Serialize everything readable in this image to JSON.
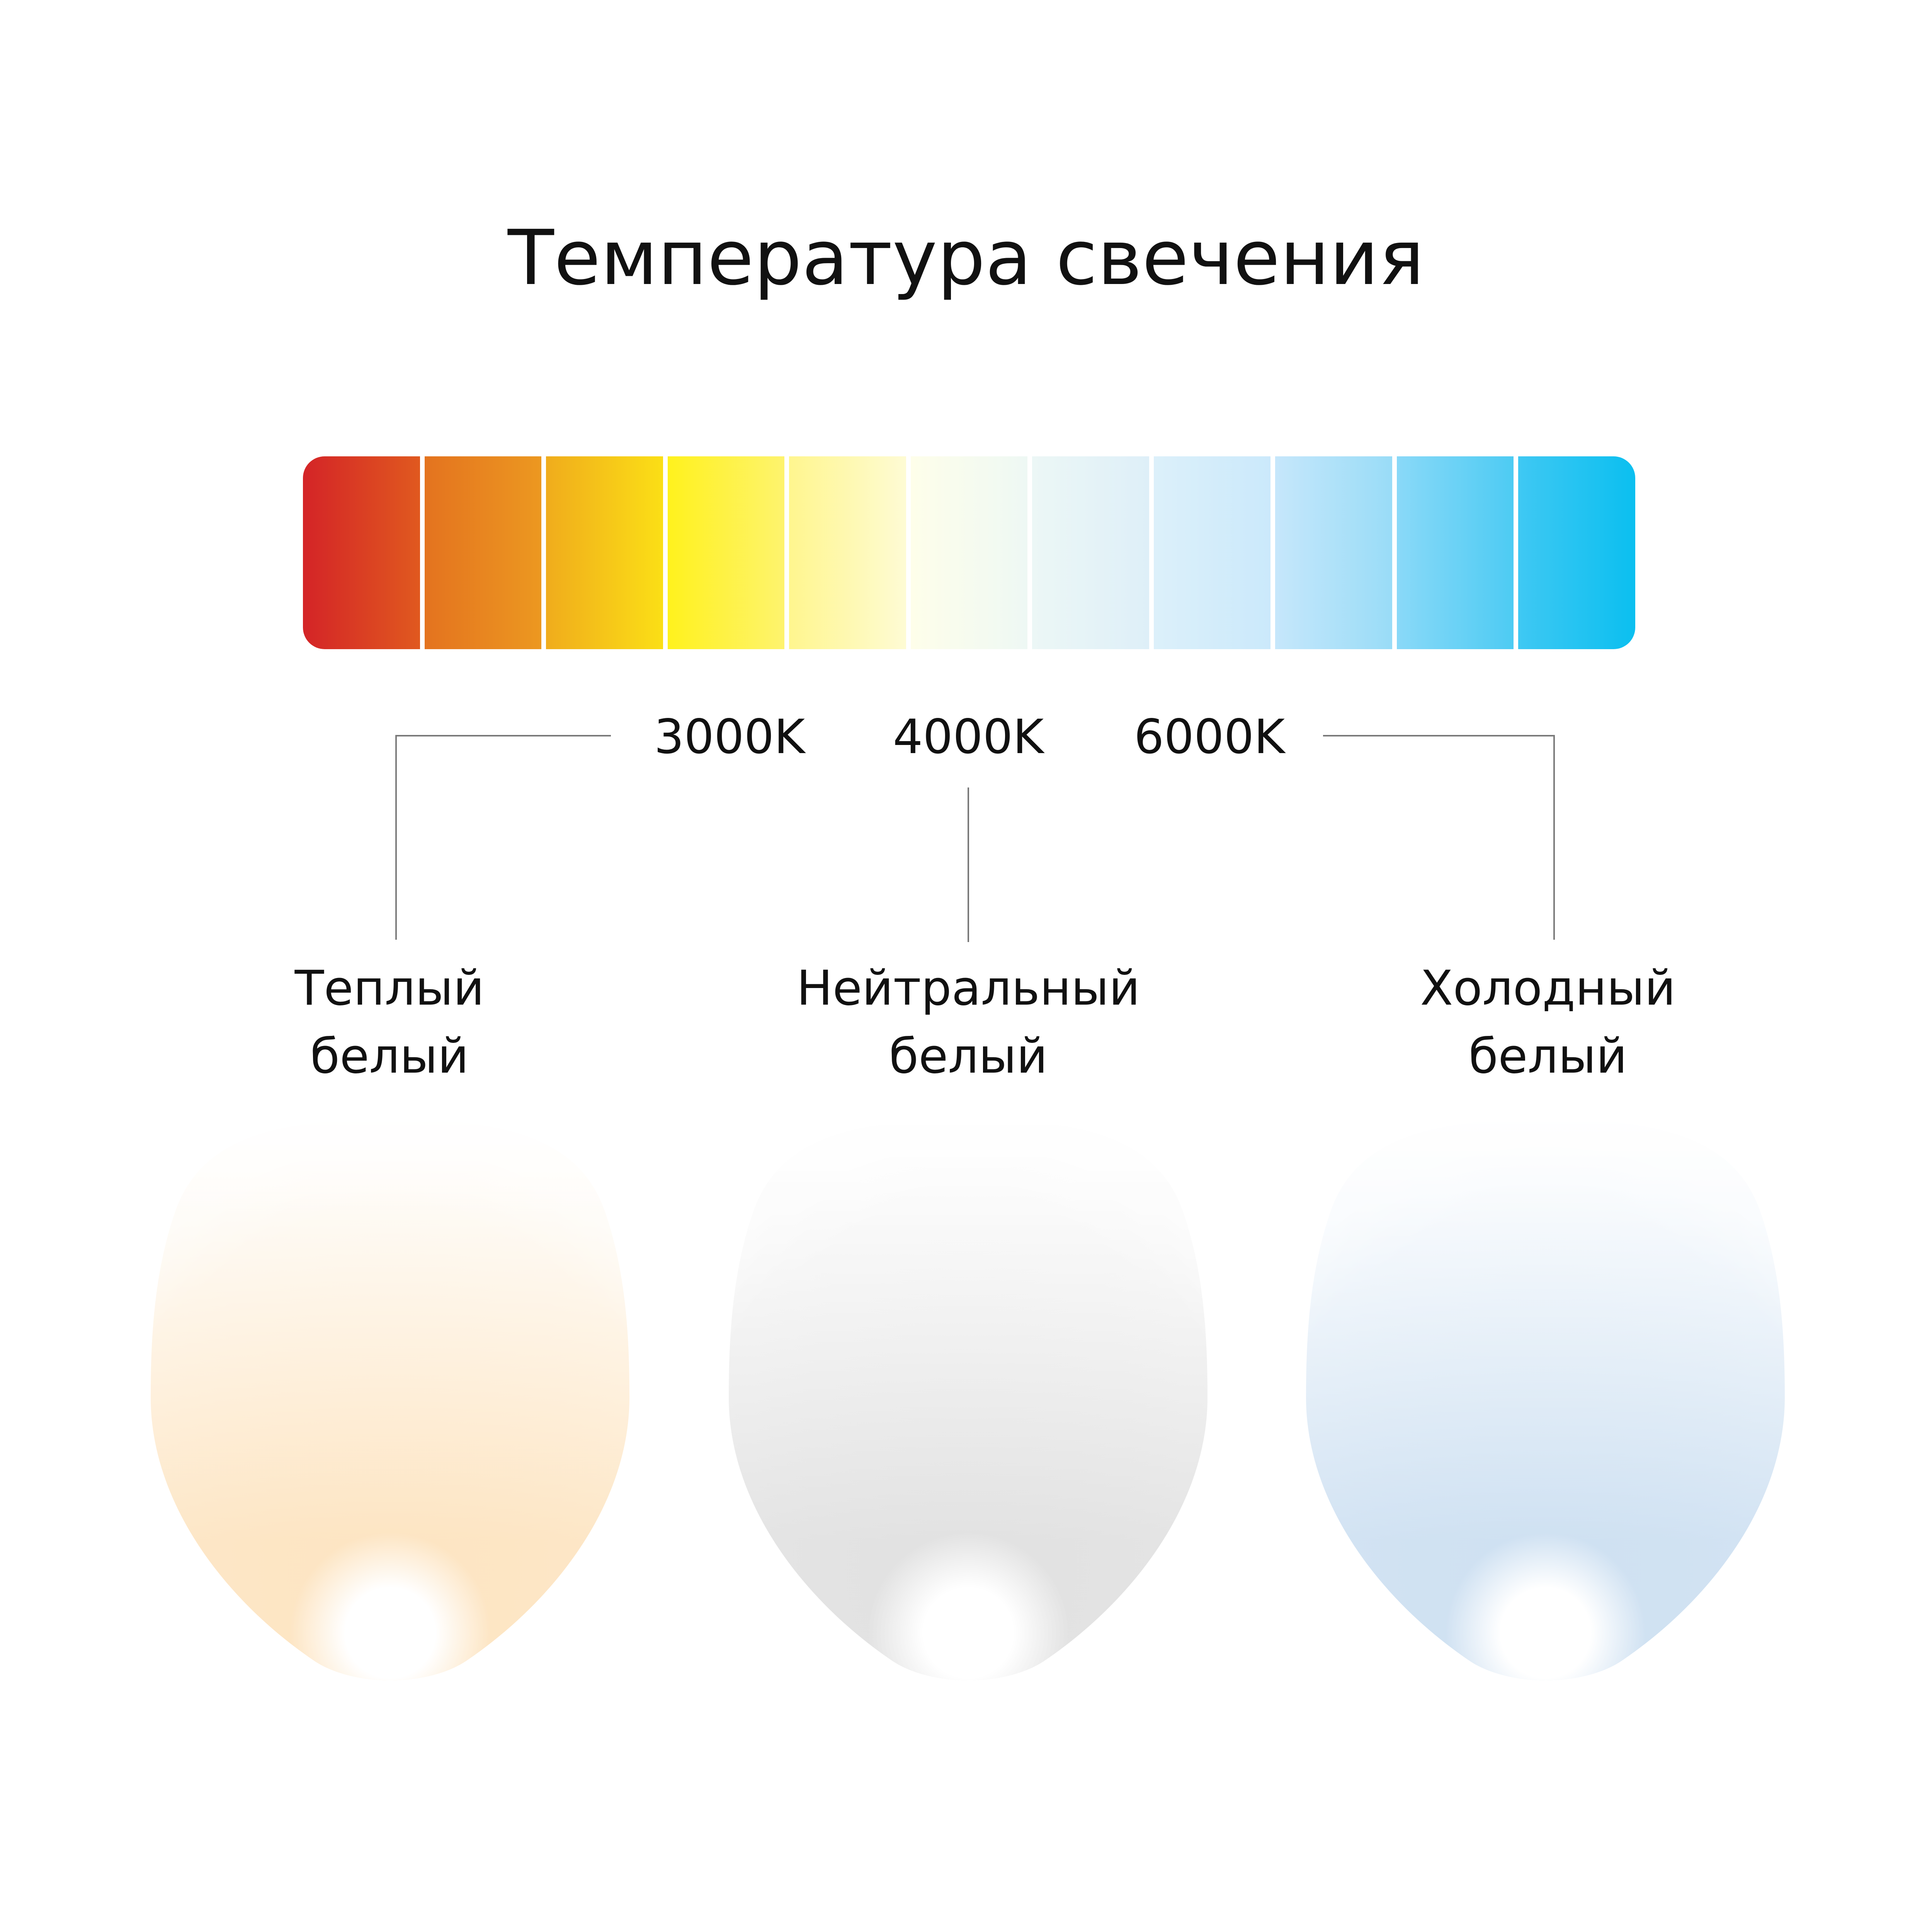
{
  "title": "Температура свечения",
  "scale": {
    "segment_colors": [
      [
        "#d42427",
        "#e0591f"
      ],
      [
        "#e4731f",
        "#ec9820"
      ],
      [
        "#f0ac1c",
        "#fbdf16"
      ],
      [
        "#fff21d",
        "#fef36e"
      ],
      [
        "#fff68e",
        "#fefbd4"
      ],
      [
        "#fefeea",
        "#eef8f4"
      ],
      [
        "#ecf7f6",
        "#deeff8"
      ],
      [
        "#dcf0fa",
        "#cbe9fb"
      ],
      [
        "#c6e7fb",
        "#99dcf7"
      ],
      [
        "#8ad9f8",
        "#4dcbf3"
      ],
      [
        "#3fc8f3",
        "#0bbff0"
      ]
    ],
    "labels": [
      "3000K",
      "4000K",
      "6000K"
    ]
  },
  "groups": [
    {
      "line1": "Теплый",
      "line2": "белый",
      "color": "#fde5c3"
    },
    {
      "line1": "Нейтральный",
      "line2": "белый",
      "color": "#e2e2e2"
    },
    {
      "line1": "Холодный",
      "line2": "белый",
      "color": "#cfe1f2"
    }
  ]
}
